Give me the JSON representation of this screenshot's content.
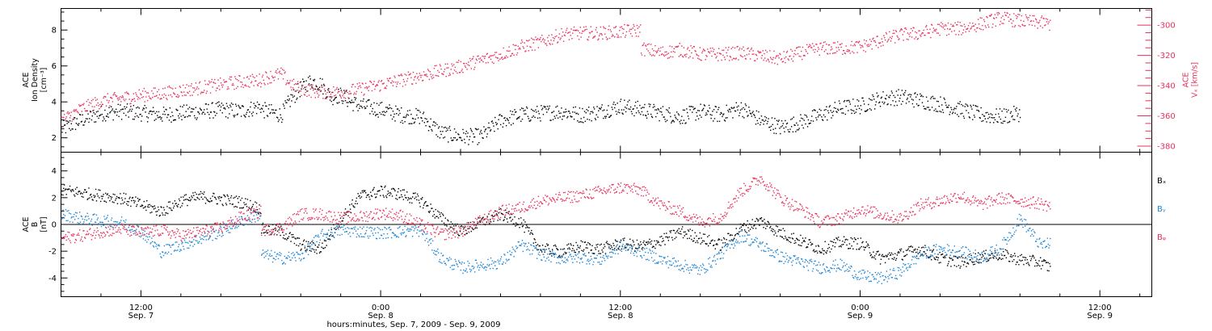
{
  "colors": {
    "black": "#000000",
    "pink": "#e8305a",
    "blue": "#1f86d6"
  },
  "xaxis": {
    "tick_labels": [
      {
        "t": 12,
        "time": "12:00",
        "date": "Sep. 7"
      },
      {
        "t": 24,
        "time": "0:00",
        "date": "Sep. 8"
      },
      {
        "t": 36,
        "time": "12:00",
        "date": "Sep. 8"
      },
      {
        "t": 48,
        "time": "0:00",
        "date": "Sep. 9"
      },
      {
        "t": 60,
        "time": "12:00",
        "date": "Sep. 9"
      }
    ],
    "title": "hours:minutes, Sep.  7, 2009 - Sep.  9, 2009",
    "range_hours": [
      8.0,
      62.6
    ],
    "minor_tick_hours": 2
  },
  "chart_data": [
    {
      "type": "scatter",
      "panel": "top",
      "ylabel_lines": [
        "ACE",
        "Ion Density",
        "[cm⁻³]"
      ],
      "ylim": [
        1.2,
        9.2
      ],
      "yticks": [
        2,
        4,
        6,
        8
      ],
      "ylabel_right_lines": [
        "ACE",
        "Vₓ [km/s]"
      ],
      "ylim_right": [
        -384,
        -289
      ],
      "yticks_right": [
        -300,
        -320,
        -340,
        -360,
        -380
      ],
      "series": [
        {
          "name": "Ion Density",
          "axis": "left",
          "color": "#000000",
          "x": [
            8.0,
            9.0,
            10.0,
            11.0,
            12.0,
            13.0,
            14.0,
            15.0,
            16.0,
            17.0,
            18.0,
            18.0,
            19.0,
            19.5,
            20.0,
            20.5,
            21.0,
            21.5,
            22.0,
            22.5,
            23.0,
            24.0,
            25.0,
            26.0,
            27.0,
            28.0,
            29.0,
            30.0,
            31.0,
            32.0,
            33.0,
            34.0,
            35.0,
            36.0,
            37.0,
            38.0,
            39.0,
            40.0,
            41.0,
            42.0,
            43.0,
            44.0,
            45.0,
            46.0,
            47.0,
            48.0,
            49.0,
            50.0,
            51.0,
            52.0,
            53.0,
            54.0,
            55.0,
            56.0,
            56.0
          ],
          "y": [
            2.5,
            3.0,
            3.4,
            3.5,
            3.4,
            3.3,
            3.4,
            3.5,
            3.6,
            3.5,
            3.8,
            3.6,
            3.3,
            4.2,
            4.8,
            5.2,
            5.0,
            4.3,
            4.4,
            4.0,
            3.8,
            3.6,
            3.3,
            3.2,
            2.3,
            2.1,
            2.1,
            3.0,
            3.3,
            3.4,
            3.5,
            3.3,
            3.5,
            3.8,
            3.6,
            3.4,
            3.2,
            3.5,
            3.3,
            3.7,
            3.0,
            2.6,
            2.9,
            3.3,
            3.7,
            3.8,
            4.2,
            4.3,
            4.1,
            3.9,
            3.6,
            3.3,
            3.2,
            3.4,
            3.0
          ]
        },
        {
          "name": "Vx",
          "axis": "right",
          "color": "#e8305a",
          "x": [
            8.0,
            9.0,
            10.0,
            11.0,
            12.0,
            13.0,
            14.0,
            15.0,
            16.0,
            17.0,
            18.0,
            18.0,
            19.0,
            19.5,
            20.0,
            21.0,
            22.0,
            23.0,
            24.0,
            25.0,
            26.0,
            27.0,
            28.0,
            29.0,
            30.0,
            31.0,
            32.0,
            33.0,
            34.0,
            35.0,
            36.0,
            37.0,
            37.0,
            38.0,
            39.0,
            40.0,
            41.0,
            42.0,
            43.0,
            44.0,
            45.0,
            46.0,
            47.0,
            48.0,
            49.0,
            50.0,
            51.0,
            52.0,
            53.0,
            54.0,
            55.0,
            56.0,
            57.0,
            57.5
          ],
          "y": [
            -363,
            -355,
            -350,
            -348,
            -346,
            -345,
            -343,
            -341,
            -339,
            -337,
            -336,
            -335,
            -332,
            -339,
            -342,
            -344,
            -344,
            -342,
            -339,
            -336,
            -333,
            -330,
            -327,
            -323,
            -319,
            -314,
            -311,
            -306,
            -305,
            -305,
            -304,
            -303,
            -315,
            -318,
            -316,
            -319,
            -319,
            -318,
            -320,
            -322,
            -318,
            -315,
            -315,
            -314,
            -310,
            -306,
            -305,
            -302,
            -302,
            -299,
            -295,
            -297,
            -298,
            -299
          ]
        }
      ]
    },
    {
      "type": "scatter",
      "panel": "bottom",
      "ylabel_lines": [
        "ACE",
        "B",
        "[nT]"
      ],
      "ylim": [
        -5.4,
        5.4
      ],
      "yticks": [
        -4,
        -2,
        0,
        2,
        4
      ],
      "legend": [
        "Bₓ",
        "Bᵧ",
        "Bᵩ"
      ],
      "series": [
        {
          "name": "Bx",
          "color": "#000000",
          "x": [
            8.0,
            9.0,
            10.0,
            11.0,
            12.0,
            13.0,
            14.0,
            15.0,
            16.0,
            17.0,
            18.0,
            18.0,
            19.0,
            20.0,
            21.0,
            22.0,
            23.0,
            24.0,
            25.0,
            26.0,
            27.0,
            28.0,
            29.0,
            30.0,
            31.0,
            32.0,
            33.0,
            34.0,
            35.0,
            36.0,
            37.0,
            38.0,
            39.0,
            40.0,
            41.0,
            42.0,
            43.0,
            44.0,
            45.0,
            46.0,
            47.0,
            48.0,
            49.0,
            50.0,
            51.0,
            52.0,
            53.0,
            54.0,
            55.0,
            56.0,
            57.0,
            57.5
          ],
          "y": [
            2.6,
            2.4,
            2.2,
            2.0,
            1.5,
            1.0,
            1.8,
            2.1,
            1.9,
            1.7,
            1.2,
            -0.3,
            -0.5,
            -1.5,
            -1.8,
            0.5,
            2.2,
            2.5,
            2.3,
            1.8,
            0.5,
            -0.5,
            0.2,
            0.8,
            0.2,
            -1.8,
            -2.0,
            -1.6,
            -1.8,
            -1.4,
            -1.6,
            -1.2,
            -0.5,
            -1.0,
            -1.5,
            -0.3,
            0.3,
            -0.6,
            -1.2,
            -1.8,
            -1.3,
            -1.4,
            -2.5,
            -2.2,
            -1.8,
            -2.5,
            -2.8,
            -2.4,
            -2.2,
            -2.6,
            -2.8,
            -3.2
          ]
        },
        {
          "name": "By",
          "color": "#1f86d6",
          "x": [
            8.0,
            9.0,
            10.0,
            11.0,
            12.0,
            13.0,
            14.0,
            15.0,
            16.0,
            17.0,
            18.0,
            18.0,
            19.0,
            20.0,
            21.0,
            22.0,
            23.0,
            24.0,
            25.0,
            26.0,
            27.0,
            28.0,
            29.0,
            30.0,
            31.0,
            32.0,
            33.0,
            34.0,
            35.0,
            36.0,
            37.0,
            38.0,
            39.0,
            40.0,
            41.0,
            42.0,
            43.0,
            44.0,
            45.0,
            46.0,
            47.0,
            48.0,
            49.0,
            50.0,
            51.0,
            52.0,
            53.0,
            54.0,
            55.0,
            56.0,
            57.0,
            57.5
          ],
          "y": [
            0.8,
            0.5,
            0.3,
            0.2,
            -0.5,
            -2.0,
            -1.5,
            -1.0,
            -0.5,
            0.3,
            0.8,
            -2.2,
            -2.5,
            -2.3,
            -0.8,
            -0.4,
            -0.5,
            -0.6,
            -0.5,
            -0.4,
            -2.5,
            -3.2,
            -3.0,
            -2.8,
            -1.5,
            -2.2,
            -2.5,
            -2.4,
            -2.6,
            -1.6,
            -2.0,
            -2.6,
            -3.0,
            -3.4,
            -2.2,
            -0.8,
            -1.5,
            -2.4,
            -2.8,
            -3.2,
            -3.0,
            -3.8,
            -4.0,
            -3.5,
            -2.2,
            -1.8,
            -2.0,
            -2.4,
            -1.8,
            0.5,
            -1.5,
            -1.4
          ]
        },
        {
          "name": "Bz",
          "color": "#e8305a",
          "x": [
            8.0,
            9.0,
            10.0,
            11.0,
            12.0,
            13.0,
            14.0,
            15.0,
            16.0,
            17.0,
            18.0,
            18.0,
            19.0,
            20.0,
            21.0,
            22.0,
            23.0,
            24.0,
            25.0,
            26.0,
            27.0,
            28.0,
            29.0,
            30.0,
            31.0,
            32.0,
            33.0,
            34.0,
            35.0,
            36.0,
            37.0,
            38.0,
            39.0,
            40.0,
            41.0,
            42.0,
            43.0,
            44.0,
            45.0,
            46.0,
            47.0,
            48.0,
            49.0,
            50.0,
            51.0,
            52.0,
            53.0,
            54.0,
            55.0,
            56.0,
            57.0,
            57.5
          ],
          "y": [
            -1.0,
            -0.8,
            -0.5,
            -0.3,
            -0.6,
            -0.4,
            -0.8,
            -0.5,
            -0.2,
            0.6,
            1.0,
            -0.4,
            -0.2,
            0.8,
            0.8,
            0.5,
            0.6,
            0.9,
            0.7,
            0.0,
            -0.7,
            -0.5,
            0.3,
            1.0,
            1.3,
            1.8,
            2.0,
            2.2,
            2.5,
            2.8,
            2.6,
            1.5,
            1.0,
            0.2,
            0.6,
            2.5,
            3.5,
            2.0,
            1.2,
            0.2,
            0.5,
            1.2,
            0.8,
            0.5,
            1.5,
            1.8,
            2.2,
            1.5,
            2.0,
            1.8,
            1.6,
            1.4
          ]
        }
      ]
    }
  ]
}
